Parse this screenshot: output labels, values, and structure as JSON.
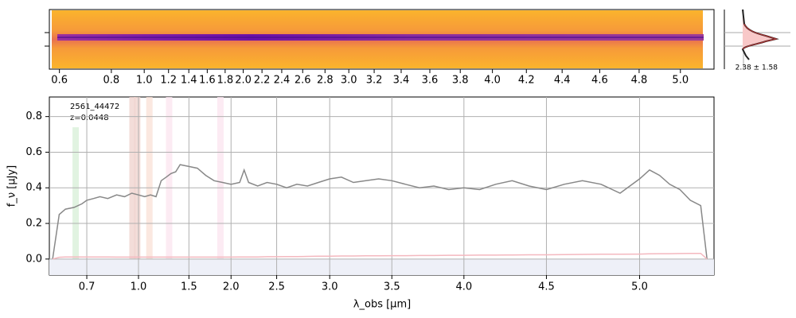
{
  "chart_data": [
    {
      "type": "image2d",
      "xticks": [
        0.6,
        0.8,
        {
          "value": 1,
          "label": "1.0"
        },
        1.2,
        1.4,
        1.6,
        1.8,
        {
          "value": 2,
          "label": "2.0"
        },
        2.2,
        2.4,
        2.6,
        2.8,
        {
          "value": 3,
          "label": "3.0"
        },
        3.2,
        3.4,
        3.6,
        3.8,
        {
          "value": 4,
          "label": "4.0"
        },
        4.2,
        4.4,
        4.6,
        4.8,
        {
          "value": 5,
          "label": "5.0"
        }
      ]
    },
    {
      "type": "histogram-inset",
      "annotation": "2.38 ± 1.58"
    },
    {
      "type": "line",
      "xlabel": "λ_obs [μm]",
      "ylabel": "f_ν [μJy]",
      "annotations": [
        "2561_44472",
        "z=0.0448"
      ],
      "ylim": [
        -0.09,
        0.91
      ],
      "yticks": [
        {
          "value": 0,
          "label": "0.0"
        },
        0.2,
        0.4,
        0.6,
        0.8
      ],
      "xticks": [
        0.7,
        {
          "value": 1,
          "label": "1.0"
        },
        1.5,
        {
          "value": 2,
          "label": "2.0"
        },
        2.5,
        {
          "value": 3,
          "label": "3.0"
        },
        3.5,
        {
          "value": 4,
          "label": "4.0"
        },
        4.5,
        {
          "value": 5,
          "label": "5.0"
        }
      ],
      "grid": true,
      "bands": [
        {
          "x": 0.656,
          "top": 0.74,
          "color": "#d9f0d9"
        },
        {
          "x": 0.955,
          "top": 0.91,
          "color": "#f0d4cf"
        },
        {
          "x": 0.99,
          "top": 0.91,
          "color": "#f0d4cf"
        },
        {
          "x": 1.09,
          "top": 0.91,
          "color": "#fae2d8"
        },
        {
          "x": 1.28,
          "top": 0.91,
          "color": "#fbe6f0"
        },
        {
          "x": 1.875,
          "top": 0.91,
          "color": "#fbe6f0"
        }
      ],
      "x": [
        0.58,
        0.6,
        0.62,
        0.65,
        0.68,
        0.7,
        0.73,
        0.76,
        0.8,
        0.85,
        0.9,
        0.95,
        1.0,
        1.05,
        1.1,
        1.15,
        1.2,
        1.25,
        1.3,
        1.35,
        1.4,
        1.5,
        1.6,
        1.7,
        1.8,
        1.9,
        2.0,
        2.1,
        2.15,
        2.2,
        2.3,
        2.4,
        2.5,
        2.6,
        2.7,
        2.8,
        2.9,
        3.0,
        3.1,
        3.2,
        3.3,
        3.4,
        3.5,
        3.6,
        3.7,
        3.8,
        3.9,
        4.0,
        4.1,
        4.2,
        4.3,
        4.4,
        4.5,
        4.6,
        4.7,
        4.8,
        4.9,
        5.0,
        5.05,
        5.1,
        5.15,
        5.2,
        5.25,
        5.3,
        5.33
      ],
      "series": [
        {
          "color": "#888888",
          "values": [
            0,
            0.25,
            0.28,
            0.29,
            0.31,
            0.33,
            0.34,
            0.35,
            0.34,
            0.36,
            0.35,
            0.37,
            0.36,
            0.35,
            0.36,
            0.35,
            0.44,
            0.46,
            0.48,
            0.49,
            0.53,
            0.52,
            0.51,
            0.47,
            0.44,
            0.43,
            0.42,
            0.43,
            0.5,
            0.43,
            0.41,
            0.43,
            0.42,
            0.4,
            0.42,
            0.41,
            0.43,
            0.45,
            0.46,
            0.43,
            0.44,
            0.45,
            0.44,
            0.42,
            0.4,
            0.41,
            0.39,
            0.4,
            0.39,
            0.42,
            0.44,
            0.41,
            0.39,
            0.42,
            0.44,
            0.42,
            0.37,
            0.45,
            0.5,
            0.47,
            0.42,
            0.39,
            0.33,
            0.3,
            0
          ]
        },
        {
          "color": "#f4b8bf",
          "values": [
            0,
            0.01,
            0.012,
            0.012,
            0.012,
            0.012,
            0.012,
            0.012,
            0.012,
            0.011,
            0.011,
            0.011,
            0.011,
            0.011,
            0.011,
            0.011,
            0.011,
            0.011,
            0.011,
            0.011,
            0.011,
            0.011,
            0.011,
            0.011,
            0.011,
            0.011,
            0.011,
            0.012,
            0.012,
            0.012,
            0.012,
            0.013,
            0.013,
            0.014,
            0.014,
            0.015,
            0.016,
            0.016,
            0.017,
            0.017,
            0.018,
            0.018,
            0.019,
            0.019,
            0.02,
            0.02,
            0.021,
            0.021,
            0.022,
            0.022,
            0.023,
            0.024,
            0.024,
            0.025,
            0.026,
            0.027,
            0.027,
            0.028,
            0.029,
            0.03,
            0.03,
            0.031,
            0.032,
            0.032,
            0
          ]
        }
      ]
    }
  ]
}
